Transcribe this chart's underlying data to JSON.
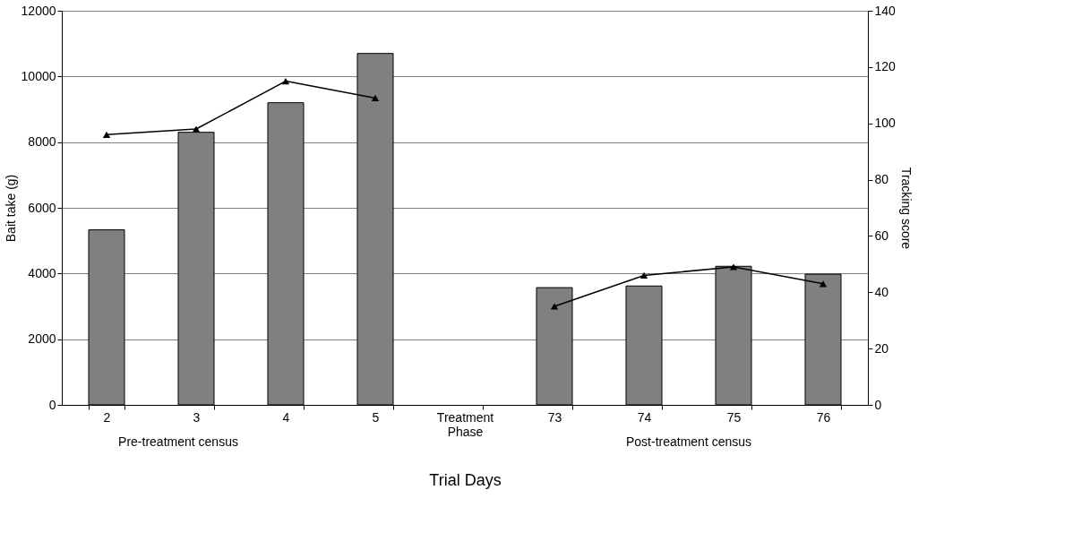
{
  "chart_data": {
    "type": "bar",
    "categories": [
      "2",
      "3",
      "4",
      "5",
      "Treatment Phase",
      "73",
      "74",
      "75",
      "76"
    ],
    "series": [
      {
        "color": "#808080",
        "values": [
          5330,
          8300,
          9200,
          10700,
          null,
          3570,
          3620,
          4220,
          3980
        ]
      },
      {
        "type": "line",
        "axis": "y2",
        "color": "#000000",
        "marker": "triangle",
        "values": [
          96,
          98,
          115,
          109,
          null,
          35,
          46,
          49,
          43
        ]
      }
    ],
    "xlabel": "Trial Days",
    "ylabel": "Bait take (g)",
    "y2label": "Tracking score",
    "ylim": [
      0,
      12000
    ],
    "yticks": [
      0,
      2000,
      4000,
      6000,
      8000,
      10000,
      12000
    ],
    "y2lim": [
      0,
      140
    ],
    "y2ticks": [
      0,
      20,
      40,
      60,
      80,
      100,
      120,
      140
    ],
    "grid": "y",
    "annotations": [
      "Pre-treatment census",
      "Post-treatment census"
    ]
  }
}
